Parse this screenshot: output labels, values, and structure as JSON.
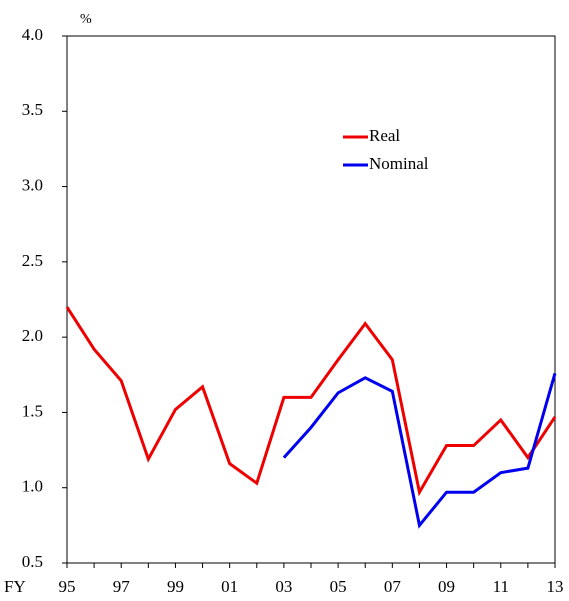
{
  "chart_data": {
    "type": "line",
    "y_unit": "%",
    "x_prefix": "FY",
    "categories": [
      "95",
      null,
      "97",
      null,
      "99",
      null,
      "01",
      null,
      "03",
      null,
      "05",
      null,
      "07",
      null,
      "09",
      null,
      "11",
      null,
      "13"
    ],
    "series": [
      {
        "name": "Real",
        "color": "#ee0000",
        "values": [
          2.2,
          1.92,
          1.71,
          1.19,
          1.52,
          1.67,
          1.16,
          1.03,
          1.6,
          1.6,
          1.85,
          2.09,
          1.85,
          0.97,
          1.28,
          1.28,
          1.45,
          1.2,
          1.47
        ]
      },
      {
        "name": "Nominal",
        "color": "#0000ee",
        "values": [
          null,
          null,
          null,
          null,
          null,
          null,
          null,
          null,
          1.2,
          1.4,
          1.63,
          1.73,
          1.64,
          0.75,
          0.97,
          0.97,
          1.1,
          1.13,
          1.76
        ]
      }
    ],
    "ylim": [
      0.5,
      4
    ],
    "yticks": [
      0.5,
      {
        "value": 1,
        "label": "1.0"
      },
      1.5,
      {
        "value": 2,
        "label": "2.0"
      },
      2.5,
      {
        "value": 3,
        "label": "3.0"
      },
      3.5,
      {
        "value": 4,
        "label": "4.0"
      }
    ],
    "grid": false
  }
}
